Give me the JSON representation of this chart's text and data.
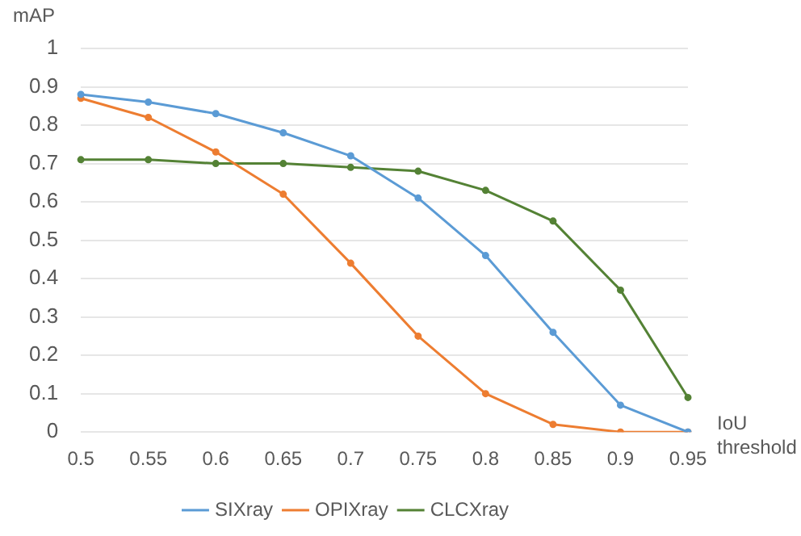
{
  "chart_data": {
    "type": "line",
    "xlabel": "IoU threshold",
    "ylabel": "mAP",
    "categories": [
      "0.5",
      "0.55",
      "0.6",
      "0.65",
      "0.7",
      "0.75",
      "0.8",
      "0.85",
      "0.9",
      "0.95"
    ],
    "series": [
      {
        "name": "SIXray",
        "color": "#5b9bd5",
        "values": [
          0.88,
          0.86,
          0.83,
          0.78,
          0.72,
          0.61,
          0.46,
          0.26,
          0.07,
          0.0
        ]
      },
      {
        "name": "OPIXray",
        "color": "#ed7d31",
        "values": [
          0.87,
          0.82,
          0.73,
          0.62,
          0.44,
          0.25,
          0.1,
          0.02,
          0.0,
          0.0
        ]
      },
      {
        "name": "CLCXray",
        "color": "#548235",
        "values": [
          0.71,
          0.71,
          0.7,
          0.7,
          0.69,
          0.68,
          0.63,
          0.55,
          0.37,
          0.09
        ]
      }
    ],
    "ylim": [
      0,
      1
    ],
    "yticks": [
      0,
      0.1,
      0.2,
      0.3,
      0.4,
      0.5,
      0.6,
      0.7,
      0.8,
      0.9,
      1
    ],
    "grid": "y",
    "legend": "bottom",
    "marker": "circle",
    "line_style": "solid"
  }
}
